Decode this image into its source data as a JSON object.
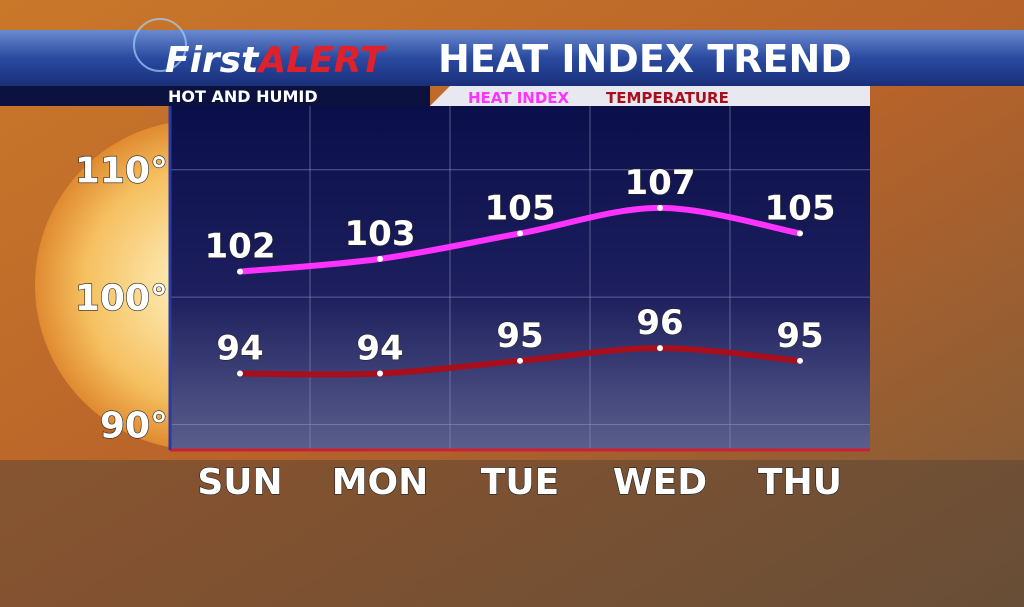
{
  "chart_data": {
    "type": "line",
    "brand_first": "First",
    "brand_alert": "ALERT",
    "title": "HEAT INDEX TREND",
    "subtitle": "HOT AND HUMID",
    "categories": [
      "SUN",
      "MON",
      "TUE",
      "WED",
      "THU"
    ],
    "series": [
      {
        "name": "HEAT INDEX",
        "color": "#ff33ff",
        "values": [
          102,
          103,
          105,
          107,
          105
        ]
      },
      {
        "name": "TEMPERATURE",
        "color": "#a80f1c",
        "values": [
          94,
          94,
          95,
          96,
          95
        ]
      }
    ],
    "ylim": [
      88,
      115
    ],
    "yticks": [
      {
        "value": 90,
        "label": "90°"
      },
      {
        "value": 100,
        "label": "100°"
      },
      {
        "value": 110,
        "label": "110°"
      }
    ],
    "grid": true
  }
}
